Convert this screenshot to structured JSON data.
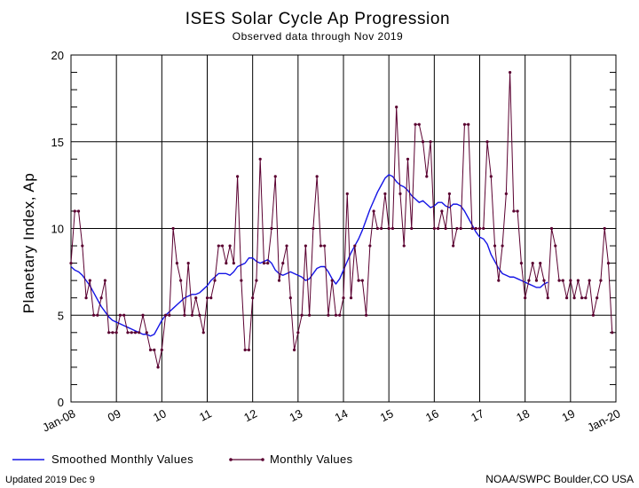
{
  "chart_data": {
    "type": "line",
    "title": "ISES Solar Cycle Ap Progression",
    "subtitle": "Observed data through Nov 2019",
    "ylabel": "Planetary Index, Ap",
    "xlabel": "",
    "ylim": [
      0,
      20
    ],
    "y_ticks": [
      "0",
      "5",
      "10",
      "15",
      "20"
    ],
    "x_tick_labels": [
      "Jan-08",
      "09",
      "10",
      "11",
      "12",
      "13",
      "14",
      "15",
      "16",
      "17",
      "18",
      "19",
      "Jan-20"
    ],
    "start": "2008-01",
    "grid": true,
    "series": [
      {
        "name": "Smoothed Monthly Values",
        "color": "#1414e6",
        "values": [
          7.8,
          7.6,
          7.5,
          7.3,
          7.0,
          6.7,
          6.3,
          5.9,
          5.5,
          5.2,
          4.9,
          4.7,
          4.6,
          4.5,
          4.4,
          4.3,
          4.2,
          4.1,
          4.0,
          3.9,
          3.9,
          3.8,
          3.9,
          4.3,
          4.7,
          5.0,
          5.2,
          5.4,
          5.6,
          5.8,
          6.0,
          6.1,
          6.2,
          6.2,
          6.3,
          6.5,
          6.7,
          7.0,
          7.2,
          7.4,
          7.4,
          7.4,
          7.3,
          7.5,
          7.8,
          7.9,
          8.0,
          8.3,
          8.3,
          8.1,
          8.0,
          8.1,
          8.2,
          8.0,
          7.6,
          7.4,
          7.3,
          7.4,
          7.5,
          7.4,
          7.3,
          7.2,
          7.0,
          7.1,
          7.4,
          7.7,
          7.8,
          7.8,
          7.5,
          7.1,
          6.8,
          7.1,
          7.6,
          8.1,
          8.6,
          9.0,
          9.4,
          9.9,
          10.5,
          11.1,
          11.6,
          12.1,
          12.5,
          12.9,
          13.1,
          13.0,
          12.7,
          12.5,
          12.4,
          12.2,
          11.9,
          11.7,
          11.5,
          11.6,
          11.4,
          11.2,
          11.3,
          11.5,
          11.5,
          11.3,
          11.2,
          11.4,
          11.4,
          11.3,
          11.0,
          10.6,
          10.2,
          9.8,
          9.5,
          9.4,
          9.1,
          8.5,
          8.1,
          7.7,
          7.4,
          7.3,
          7.2,
          7.2,
          7.1,
          7.0,
          6.9,
          6.8,
          6.7,
          6.6,
          6.6,
          6.8,
          6.9
        ]
      },
      {
        "name": "Monthly Values",
        "color": "#5a0030",
        "values": [
          8,
          11,
          11,
          9,
          6,
          7,
          5,
          5,
          6,
          7,
          4,
          4,
          4,
          5,
          5,
          4,
          4,
          4,
          4,
          5,
          4,
          3,
          3,
          2,
          3,
          5,
          5,
          10,
          8,
          7,
          5,
          8,
          5,
          6,
          5,
          4,
          6,
          6,
          7,
          9,
          9,
          8,
          9,
          8,
          13,
          7,
          3,
          3,
          6,
          7,
          14,
          8,
          8,
          10,
          13,
          7,
          8,
          9,
          6,
          3,
          4,
          5,
          9,
          5,
          10,
          13,
          9,
          9,
          5,
          7,
          5,
          5,
          6,
          12,
          6,
          9,
          7,
          7,
          5,
          9,
          11,
          10,
          10,
          12,
          10,
          10,
          17,
          12,
          9,
          14,
          10,
          16,
          16,
          15,
          13,
          15,
          10,
          10,
          11,
          10,
          12,
          9,
          10,
          10,
          16,
          16,
          10,
          10,
          10,
          10,
          15,
          13,
          9,
          7,
          9,
          12,
          19,
          11,
          11,
          8,
          6,
          7,
          8,
          7,
          8,
          7,
          6,
          10,
          9,
          7,
          7,
          6,
          7,
          6,
          7,
          6,
          6,
          7,
          5,
          6,
          7,
          10,
          8,
          4
        ]
      }
    ],
    "legend": {
      "placement": "bottom-left",
      "smoothed_label": "Smoothed Monthly Values",
      "monthly_label": "Monthly Values"
    }
  },
  "footer": {
    "updated": "Updated 2019 Dec  9",
    "credit": "NOAA/SWPC Boulder,CO USA"
  },
  "colors": {
    "smoothed": "#1414e6",
    "monthly": "#5a0030",
    "credit": "#1a1ad6",
    "grid": "#000000"
  }
}
